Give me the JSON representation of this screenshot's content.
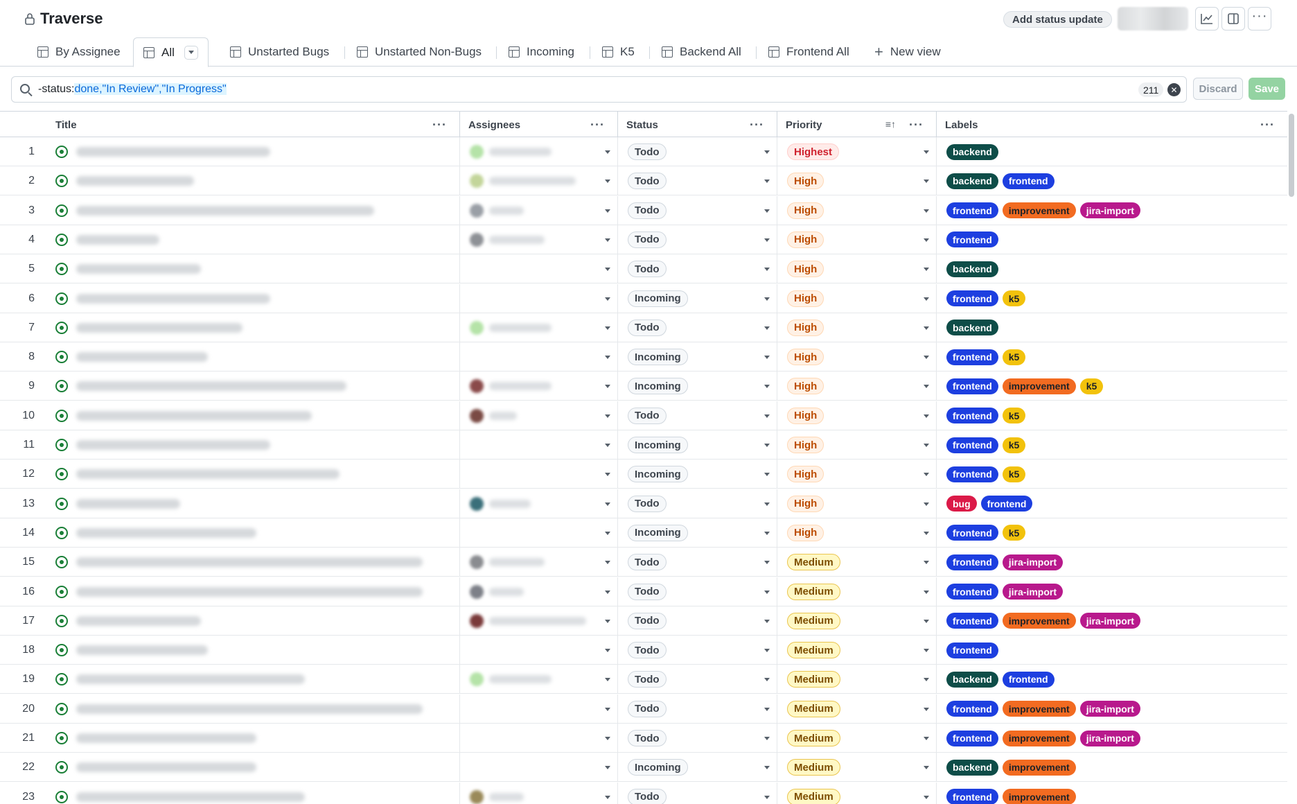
{
  "header": {
    "title": "Traverse",
    "add_status_label": "Add status update"
  },
  "tabs": [
    {
      "label": "By Assignee"
    },
    {
      "label": "All",
      "active": true
    },
    {
      "label": "Unstarted Bugs"
    },
    {
      "label": "Unstarted Non-Bugs"
    },
    {
      "label": "Incoming"
    },
    {
      "label": "K5"
    },
    {
      "label": "Backend All"
    },
    {
      "label": "Frontend All"
    },
    {
      "label": "New view"
    }
  ],
  "filter": {
    "prefix": "-status:",
    "value": "done,\"In Review\",\"In Progress\"",
    "count": "211",
    "discard_label": "Discard",
    "save_label": "Save"
  },
  "columns": {
    "title": "Title",
    "assignees": "Assignees",
    "status": "Status",
    "priority": "Priority",
    "labels": "Labels"
  },
  "colors": {
    "backend": "#0e4d48",
    "frontend": "#1d3fe0",
    "improvement": "#f26b21",
    "jira-import": "#b8198c",
    "k5": "#f2c20c",
    "bug": "#db1a48"
  },
  "rows": [
    {
      "n": "1",
      "status": "Todo",
      "priority": "Highest",
      "labels": [
        "backend"
      ]
    },
    {
      "n": "2",
      "status": "Todo",
      "priority": "High",
      "labels": [
        "backend",
        "frontend"
      ]
    },
    {
      "n": "3",
      "status": "Todo",
      "priority": "High",
      "labels": [
        "frontend",
        "improvement",
        "jira-import"
      ]
    },
    {
      "n": "4",
      "status": "Todo",
      "priority": "High",
      "labels": [
        "frontend"
      ]
    },
    {
      "n": "5",
      "status": "Todo",
      "priority": "High",
      "labels": [
        "backend"
      ]
    },
    {
      "n": "6",
      "status": "Incoming",
      "priority": "High",
      "labels": [
        "frontend",
        "k5"
      ]
    },
    {
      "n": "7",
      "status": "Todo",
      "priority": "High",
      "labels": [
        "backend"
      ]
    },
    {
      "n": "8",
      "status": "Incoming",
      "priority": "High",
      "labels": [
        "frontend",
        "k5"
      ]
    },
    {
      "n": "9",
      "status": "Incoming",
      "priority": "High",
      "labels": [
        "frontend",
        "improvement",
        "k5"
      ]
    },
    {
      "n": "10",
      "status": "Todo",
      "priority": "High",
      "labels": [
        "frontend",
        "k5"
      ]
    },
    {
      "n": "11",
      "status": "Incoming",
      "priority": "High",
      "labels": [
        "frontend",
        "k5"
      ]
    },
    {
      "n": "12",
      "status": "Incoming",
      "priority": "High",
      "labels": [
        "frontend",
        "k5"
      ]
    },
    {
      "n": "13",
      "status": "Todo",
      "priority": "High",
      "labels": [
        "bug",
        "frontend"
      ]
    },
    {
      "n": "14",
      "status": "Incoming",
      "priority": "High",
      "labels": [
        "frontend",
        "k5"
      ]
    },
    {
      "n": "15",
      "status": "Todo",
      "priority": "Medium",
      "labels": [
        "frontend",
        "jira-import"
      ]
    },
    {
      "n": "16",
      "status": "Todo",
      "priority": "Medium",
      "labels": [
        "frontend",
        "jira-import"
      ]
    },
    {
      "n": "17",
      "status": "Todo",
      "priority": "Medium",
      "labels": [
        "frontend",
        "improvement",
        "jira-import"
      ]
    },
    {
      "n": "18",
      "status": "Todo",
      "priority": "Medium",
      "labels": [
        "frontend"
      ]
    },
    {
      "n": "19",
      "status": "Todo",
      "priority": "Medium",
      "labels": [
        "backend",
        "frontend"
      ]
    },
    {
      "n": "20",
      "status": "Todo",
      "priority": "Medium",
      "labels": [
        "frontend",
        "improvement",
        "jira-import"
      ]
    },
    {
      "n": "21",
      "status": "Todo",
      "priority": "Medium",
      "labels": [
        "frontend",
        "improvement",
        "jira-import"
      ]
    },
    {
      "n": "22",
      "status": "Incoming",
      "priority": "Medium",
      "labels": [
        "backend",
        "improvement"
      ]
    },
    {
      "n": "23",
      "status": "Todo",
      "priority": "Medium",
      "labels": [
        "frontend",
        "improvement"
      ]
    }
  ]
}
